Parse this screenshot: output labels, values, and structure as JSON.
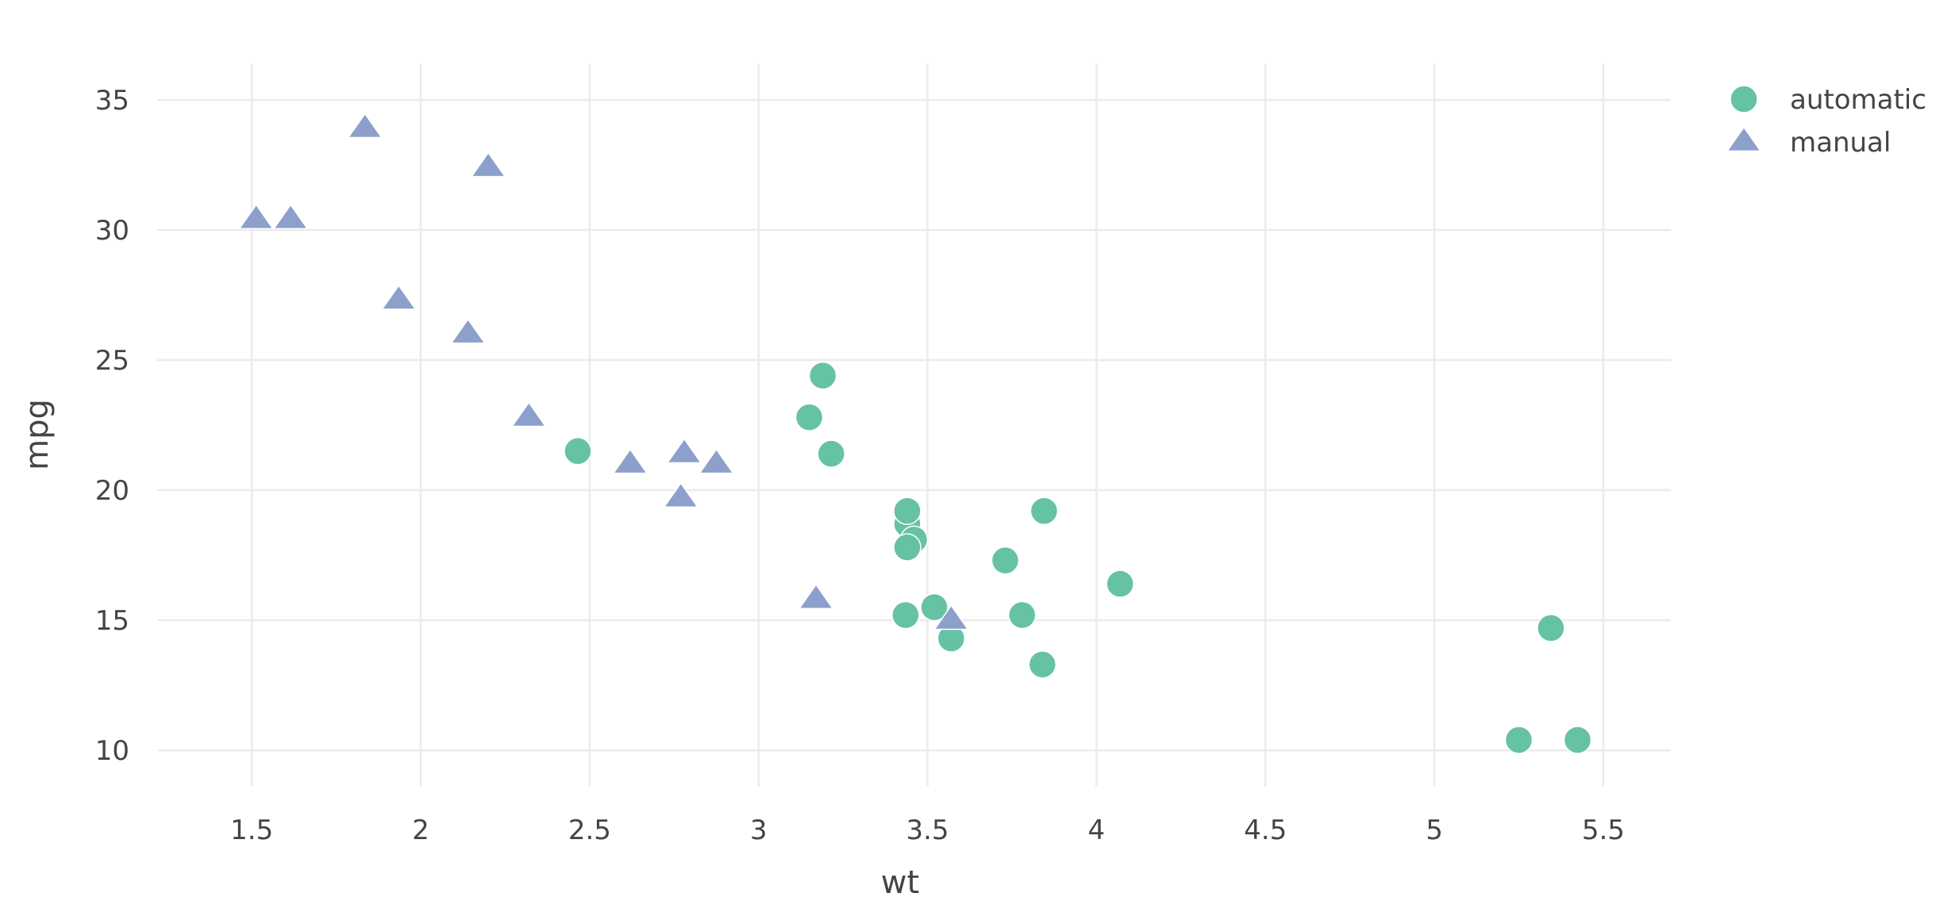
{
  "chart_data": {
    "type": "scatter",
    "title": "",
    "xlabel": "wt",
    "ylabel": "mpg",
    "xlim": [
      1.22,
      5.7
    ],
    "ylim": [
      8.6,
      36.4
    ],
    "x_ticks": [
      1.5,
      2,
      2.5,
      3,
      3.5,
      4,
      4.5,
      5,
      5.5
    ],
    "x_tick_labels": [
      "1.5",
      "2",
      "2.5",
      "3",
      "3.5",
      "4",
      "4.5",
      "5",
      "5.5"
    ],
    "y_ticks": [
      10,
      15,
      20,
      25,
      30,
      35
    ],
    "y_tick_labels": [
      "10",
      "15",
      "20",
      "25",
      "30",
      "35"
    ],
    "grid": true,
    "legend_position": "top-right",
    "series": [
      {
        "name": "automatic",
        "marker": "circle",
        "color": "#66c2a5",
        "x": [
          3.215,
          3.44,
          3.46,
          3.57,
          3.19,
          3.15,
          3.44,
          3.44,
          4.07,
          3.73,
          3.78,
          5.25,
          5.424,
          5.345,
          3.52,
          3.435,
          3.84,
          3.845,
          2.465
        ],
        "y": [
          21.4,
          18.7,
          18.1,
          14.3,
          24.4,
          22.8,
          19.2,
          17.8,
          16.4,
          17.3,
          15.2,
          10.4,
          10.4,
          14.7,
          15.5,
          15.2,
          13.3,
          19.2,
          21.5
        ]
      },
      {
        "name": "manual",
        "marker": "triangle",
        "color": "#8da0cb",
        "x": [
          2.62,
          2.875,
          2.32,
          2.2,
          1.615,
          1.835,
          1.935,
          2.14,
          1.513,
          3.17,
          2.77,
          3.57,
          2.78
        ],
        "y": [
          21.0,
          21.0,
          22.8,
          32.4,
          30.4,
          33.9,
          27.3,
          26.0,
          30.4,
          15.8,
          19.7,
          15.0,
          21.4
        ]
      }
    ]
  }
}
